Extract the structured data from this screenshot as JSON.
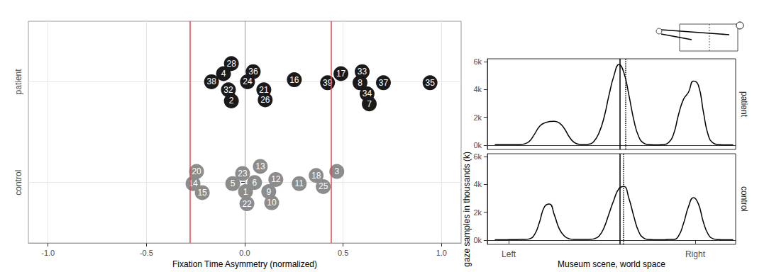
{
  "chart_data": [
    {
      "type": "scatter",
      "xlabel": "Fixation Time Asymmetry (normalized)",
      "xlim": [
        -1.1,
        1.1
      ],
      "xticks": [
        {
          "value": -1,
          "label": "-1.0"
        },
        -0.5,
        {
          "value": 0,
          "label": "0.0"
        },
        0.5,
        {
          "value": 1,
          "label": "1.0"
        }
      ],
      "ylim": [
        0.4,
        2.6
      ],
      "yticks": [
        {
          "value": 1,
          "label": "control"
        },
        {
          "value": 2,
          "label": "patient"
        }
      ],
      "grid": true,
      "data_labels": true,
      "vlines": [
        {
          "x": -0.284,
          "color": "#e8474a"
        },
        {
          "x": 0.442,
          "color": "#e8474a"
        }
      ],
      "series": [
        {
          "color": "#1a1a1a",
          "points": [
            {
              "label": 28,
              "x": -0.068,
              "y": 2.18
            },
            {
              "label": 4,
              "x": -0.108,
              "y": 2.08
            },
            {
              "label": 38,
              "x": -0.169,
              "y": 2.0
            },
            {
              "label": 32,
              "x": -0.083,
              "y": 1.92
            },
            {
              "label": 2,
              "x": -0.068,
              "y": 1.81
            },
            {
              "label": 36,
              "x": 0.043,
              "y": 2.1
            },
            {
              "label": 24,
              "x": 0.014,
              "y": 2.0
            },
            {
              "label": 16,
              "x": 0.252,
              "y": 2.02
            },
            {
              "label": 21,
              "x": 0.097,
              "y": 1.92
            },
            {
              "label": 26,
              "x": 0.104,
              "y": 1.82
            },
            {
              "label": 39,
              "x": 0.421,
              "y": 1.99
            },
            {
              "label": 17,
              "x": 0.489,
              "y": 2.08
            },
            {
              "label": 33,
              "x": 0.597,
              "y": 2.1
            },
            {
              "label": 8,
              "x": 0.586,
              "y": 1.99
            },
            {
              "label": 37,
              "x": 0.705,
              "y": 1.99
            },
            {
              "label": 34,
              "x": 0.622,
              "y": 1.88
            },
            {
              "label": 7,
              "x": 0.633,
              "y": 1.78
            },
            {
              "label": 35,
              "x": 0.942,
              "y": 1.99
            }
          ]
        },
        {
          "color": "#8c8c8c",
          "points": [
            {
              "label": 20,
              "x": -0.245,
              "y": 1.11
            },
            {
              "label": 14,
              "x": -0.263,
              "y": 0.99
            },
            {
              "label": 15,
              "x": -0.216,
              "y": 0.9
            },
            {
              "label": 5,
              "x": -0.061,
              "y": 0.99
            },
            {
              "label": 23,
              "x": -0.011,
              "y": 1.09
            },
            {
              "label": 13,
              "x": 0.079,
              "y": 1.16
            },
            {
              "label": 6,
              "x": 0.05,
              "y": 1.0
            },
            {
              "label": 12,
              "x": 0.158,
              "y": 1.03
            },
            {
              "label": 1,
              "x": 0.004,
              "y": 0.91
            },
            {
              "label": 22,
              "x": 0.011,
              "y": 0.79
            },
            {
              "label": 9,
              "x": 0.122,
              "y": 0.91
            },
            {
              "label": 10,
              "x": 0.137,
              "y": 0.8
            },
            {
              "label": 11,
              "x": 0.277,
              "y": 0.99
            },
            {
              "label": 18,
              "x": 0.363,
              "y": 1.07
            },
            {
              "label": 25,
              "x": 0.399,
              "y": 0.96
            },
            {
              "label": 3,
              "x": 0.468,
              "y": 1.11
            }
          ]
        }
      ]
    },
    {
      "type": "line",
      "xlabel": "Museum scene, world space",
      "ylabel": "gaze samples in thousands (k)",
      "xlim": [
        0,
        100
      ],
      "xticks": [
        {
          "value": 8.6,
          "label": "Left"
        },
        {
          "value": 83.7,
          "label": "Right"
        }
      ],
      "ylim": [
        -0.3,
        6.2
      ],
      "yticks": [
        {
          "value": 0,
          "label": "0k"
        },
        {
          "value": 2,
          "label": "2k"
        },
        {
          "value": 4,
          "label": "4k"
        },
        {
          "value": 6,
          "label": "6k"
        }
      ],
      "grid": false,
      "x": [
        3,
        5,
        7,
        9,
        11,
        13,
        15,
        17,
        19,
        21,
        23,
        25,
        27,
        29,
        31,
        33,
        35,
        37,
        39,
        41,
        43,
        45,
        47,
        49,
        51,
        53,
        55,
        57,
        59,
        61,
        63,
        65,
        67,
        69,
        71,
        73,
        75,
        77,
        79,
        81,
        83,
        85,
        87,
        89,
        91,
        93,
        95,
        97,
        99
      ],
      "series": [
        {
          "facet": "patient",
          "color": "#000000",
          "values": [
            0.05,
            0.05,
            0.05,
            0.05,
            0.05,
            0.06,
            0.1,
            0.3,
            0.8,
            1.35,
            1.6,
            1.7,
            1.72,
            1.6,
            1.2,
            0.6,
            0.2,
            0.07,
            0.05,
            0.08,
            0.3,
            0.9,
            2.0,
            3.6,
            5.0,
            5.8,
            5.2,
            3.6,
            1.8,
            0.6,
            0.15,
            0.05,
            0.03,
            0.03,
            0.05,
            0.2,
            0.8,
            2.2,
            3.3,
            3.8,
            4.6,
            4.3,
            2.4,
            0.7,
            0.15,
            0.05,
            0.03,
            0.03,
            0.03
          ],
          "vlines": [
            {
              "x": 53.4,
              "line_style": "solid"
            },
            {
              "x": 55.7,
              "line_style": "dotted"
            }
          ]
        },
        {
          "facet": "control",
          "color": "#000000",
          "values": [
            0.03,
            0.03,
            0.03,
            0.04,
            0.04,
            0.05,
            0.05,
            0.1,
            0.4,
            1.3,
            2.4,
            2.6,
            1.8,
            0.8,
            0.3,
            0.1,
            0.05,
            0.05,
            0.05,
            0.06,
            0.1,
            0.3,
            0.9,
            1.9,
            2.9,
            3.7,
            3.85,
            3.0,
            1.7,
            0.6,
            0.15,
            0.05,
            0.03,
            0.03,
            0.03,
            0.05,
            0.05,
            0.3,
            1.2,
            2.4,
            3.05,
            2.6,
            1.3,
            0.4,
            0.1,
            0.04,
            0.03,
            0.03,
            0.03
          ],
          "vlines": [
            {
              "x": 53.4,
              "line_style": "solid"
            },
            {
              "x": 54.9,
              "line_style": "dotted"
            }
          ]
        }
      ]
    }
  ]
}
